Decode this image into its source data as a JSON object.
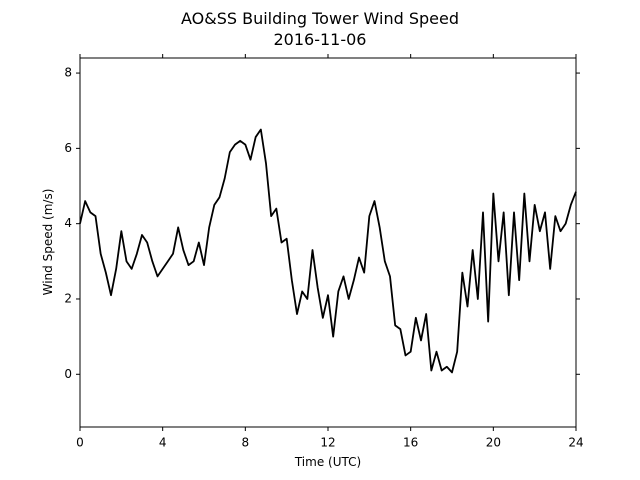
{
  "chart_data": {
    "type": "line",
    "title": "AO&SS Building Tower Wind Speed",
    "subtitle": "2016-11-06",
    "x_label": "Time (UTC)",
    "y_label": "Wind Speed (m/s)",
    "x": [
      0,
      0.25,
      0.5,
      0.75,
      1,
      1.25,
      1.5,
      1.75,
      2,
      2.25,
      2.5,
      2.75,
      3,
      3.25,
      3.5,
      3.75,
      4,
      4.25,
      4.5,
      4.75,
      5,
      5.25,
      5.5,
      5.75,
      6,
      6.25,
      6.5,
      6.75,
      7,
      7.25,
      7.5,
      7.75,
      8,
      8.25,
      8.5,
      8.75,
      9,
      9.25,
      9.5,
      9.75,
      10,
      10.25,
      10.5,
      10.75,
      11,
      11.25,
      11.5,
      11.75,
      12,
      12.25,
      12.5,
      12.75,
      13,
      13.25,
      13.5,
      13.75,
      14,
      14.25,
      14.5,
      14.75,
      15,
      15.25,
      15.5,
      15.75,
      16,
      16.25,
      16.5,
      16.75,
      17,
      17.25,
      17.5,
      17.75,
      18,
      18.25,
      18.5,
      18.75,
      19,
      19.25,
      19.5,
      19.75,
      20,
      20.25,
      20.5,
      20.75,
      21,
      21.25,
      21.5,
      21.75,
      22,
      22.25,
      22.5,
      22.75,
      23,
      23.25,
      23.5,
      23.75,
      24
    ],
    "series": [
      {
        "name": "Wind Speed",
        "color": "#000000",
        "values": [
          4.0,
          4.6,
          4.3,
          4.2,
          3.2,
          2.7,
          2.1,
          2.8,
          3.8,
          3.0,
          2.8,
          3.2,
          3.7,
          3.5,
          3.0,
          2.6,
          2.8,
          3.0,
          3.2,
          3.9,
          3.3,
          2.9,
          3.0,
          3.5,
          2.9,
          3.9,
          4.5,
          4.7,
          5.2,
          5.9,
          6.1,
          6.2,
          6.1,
          5.7,
          6.3,
          6.5,
          5.6,
          4.2,
          4.4,
          3.5,
          3.6,
          2.5,
          1.6,
          2.2,
          2.0,
          3.3,
          2.3,
          1.5,
          2.1,
          1.0,
          2.2,
          2.6,
          2.0,
          2.5,
          3.1,
          2.7,
          4.2,
          4.6,
          3.9,
          3.0,
          2.6,
          1.3,
          1.2,
          0.5,
          0.6,
          1.5,
          0.9,
          1.6,
          0.1,
          0.6,
          0.1,
          0.2,
          0.05,
          0.6,
          2.7,
          1.8,
          3.3,
          2.0,
          4.3,
          1.4,
          4.8,
          3.0,
          4.3,
          2.1,
          4.3,
          2.5,
          4.8,
          3.0,
          4.5,
          3.8,
          4.3,
          2.8,
          4.2,
          3.8,
          4.0,
          4.5,
          4.85
        ]
      }
    ],
    "xlim": [
      0,
      24
    ],
    "xticks": [
      0,
      4,
      8,
      12,
      16,
      20,
      24
    ],
    "ylim": [
      -1.4,
      8.4
    ],
    "yticks": [
      0,
      2,
      4,
      6,
      8
    ]
  }
}
